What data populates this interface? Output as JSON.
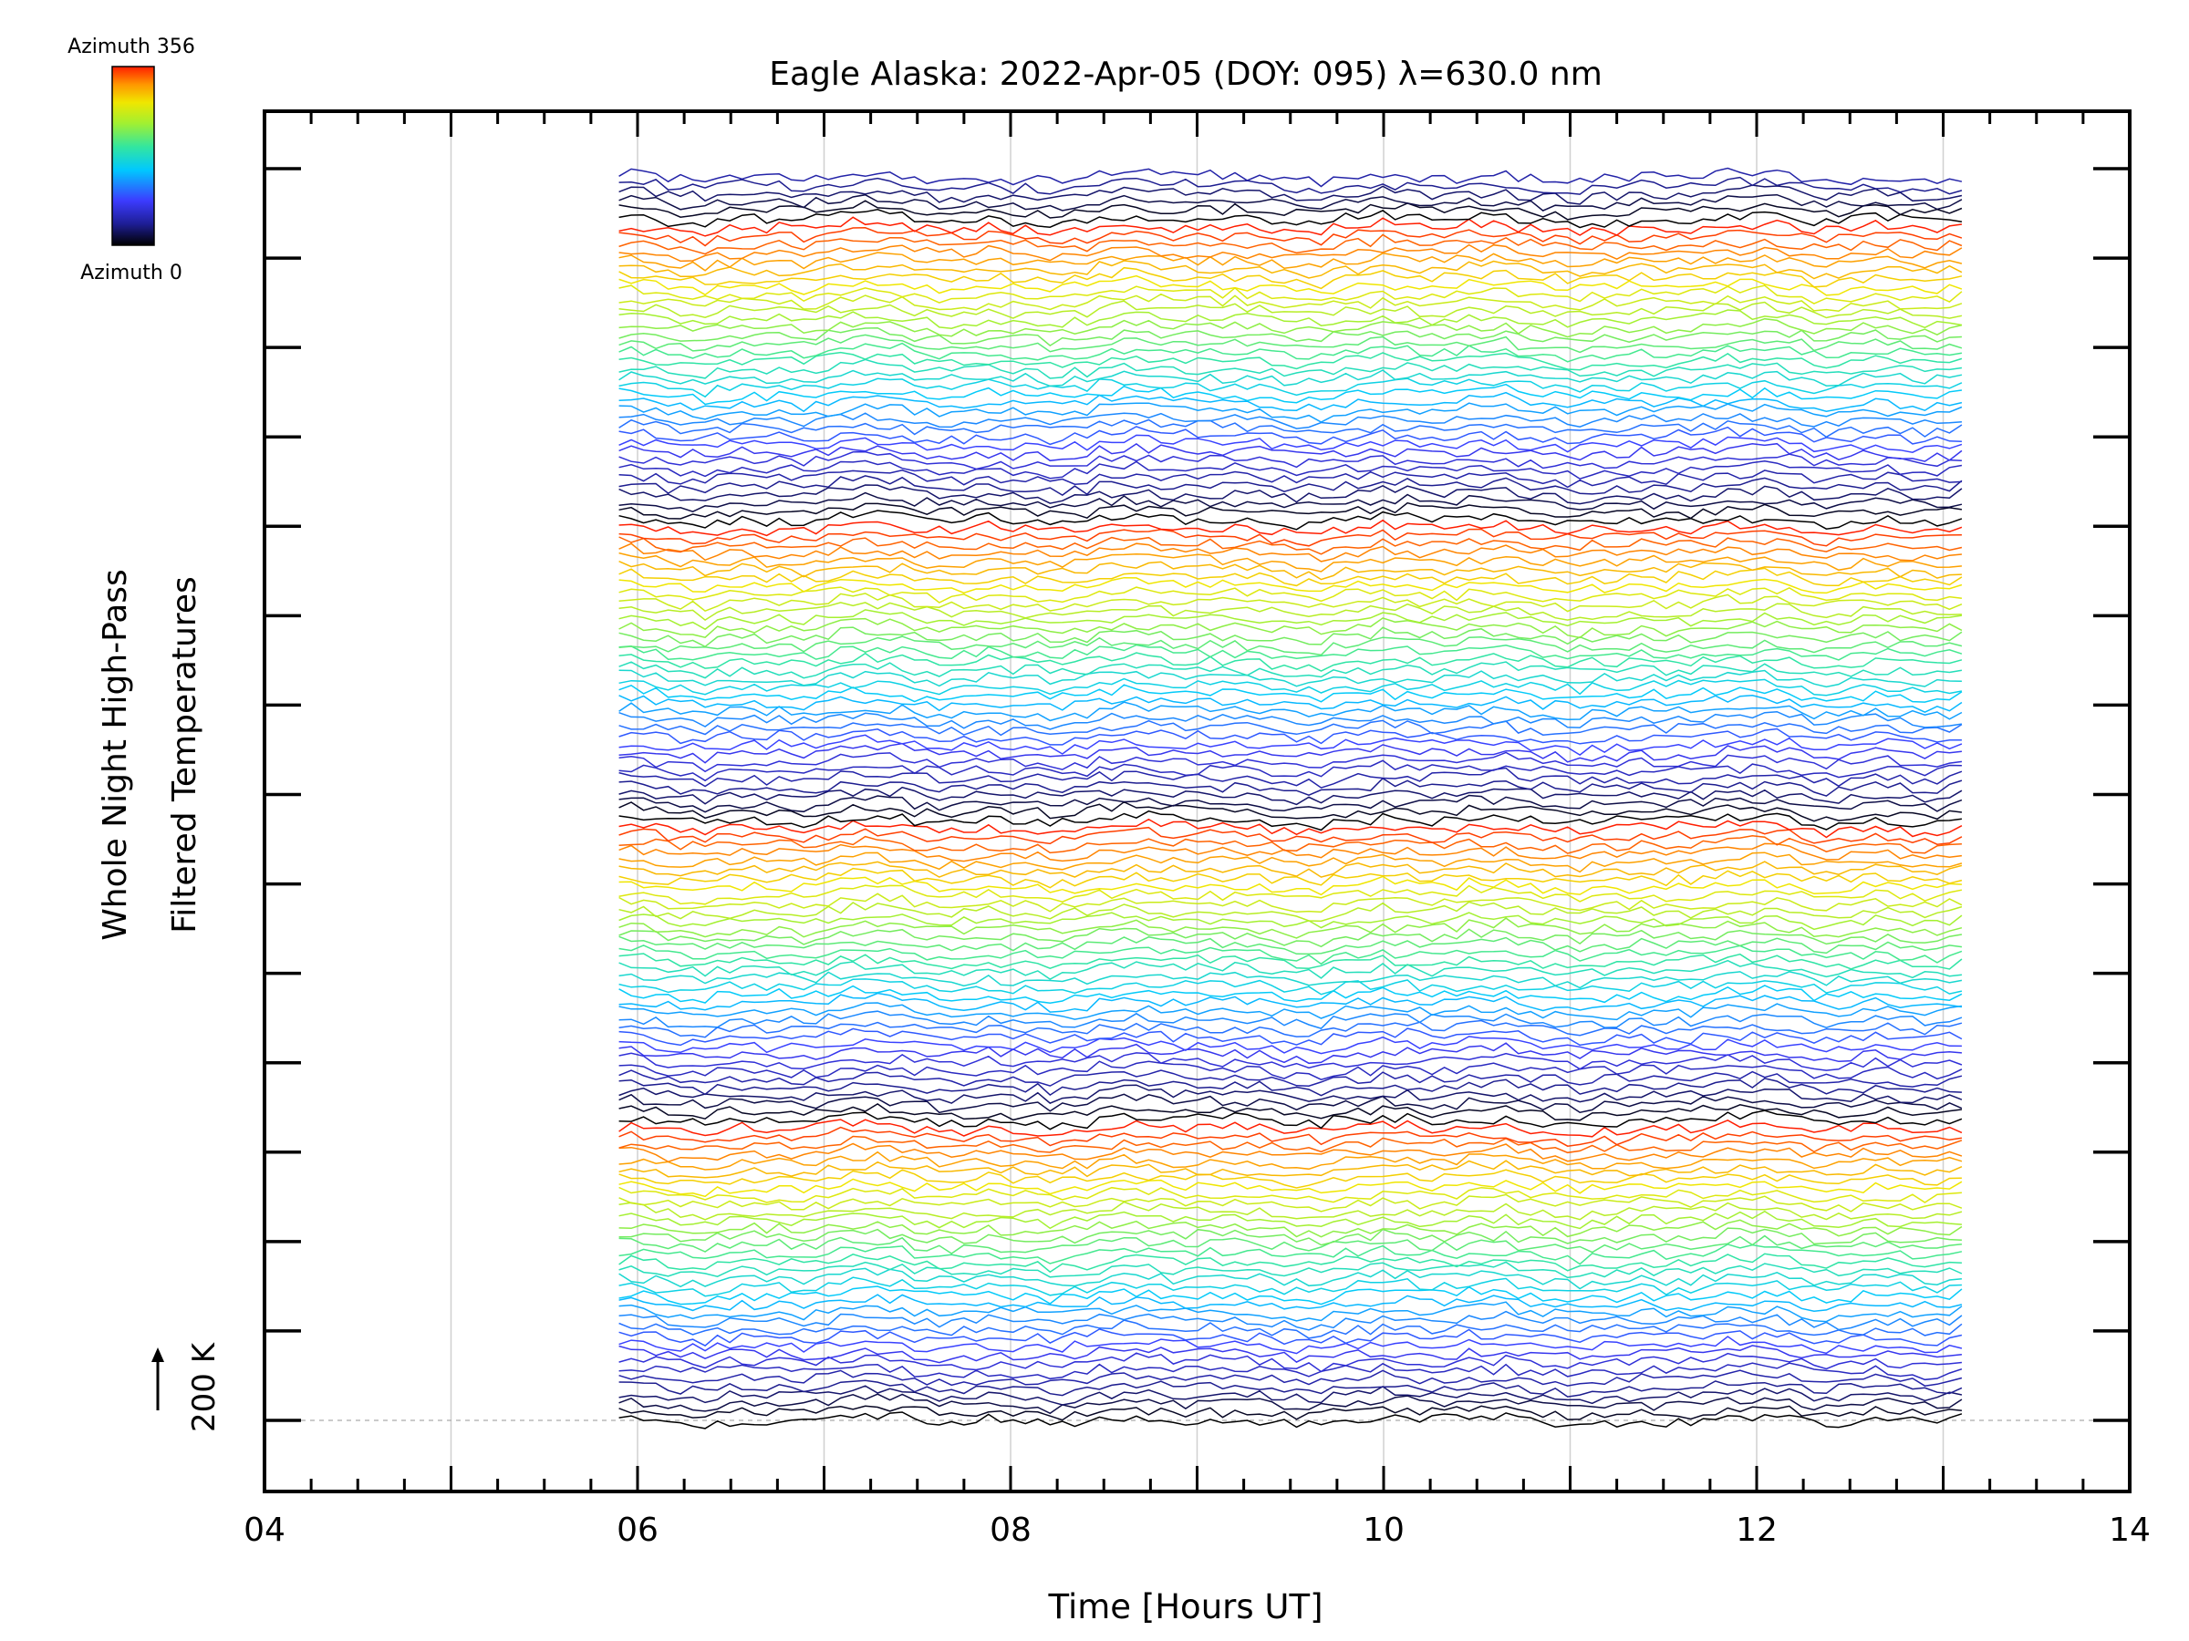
{
  "chart_data": {
    "type": "line",
    "title": "Eagle Alaska: 2022-Apr-05 (DOY: 095) λ=630.0 nm",
    "xlabel": "Time [Hours UT]",
    "ylabel_line1": "Whole Night High-Pass",
    "ylabel_line2": "Filtered Temperatures",
    "scale_label": "200 K",
    "xlim": [
      4,
      14
    ],
    "x_ticks": [
      "04",
      "06",
      "08",
      "10",
      "12",
      "14"
    ],
    "x_gridlines": [
      5,
      6,
      7,
      8,
      9,
      10,
      11,
      12,
      13
    ],
    "time_range": [
      5.9,
      13.1
    ],
    "y_major_ticks": 15,
    "colorbar": {
      "top_label": "Azimuth 356",
      "bottom_label": "Azimuth 0",
      "colormap": "rainbow"
    },
    "series_description": "stacked high-pass filtered temperature traces, one per azimuth, offset vertically",
    "num_traces": 150,
    "colors": {
      "axis": "#000000",
      "grid": "#d0d0d0",
      "baseline": "#aaaaaa",
      "colormap_stops": [
        "#000000",
        "#1e1e96",
        "#3c3cff",
        "#00c8ff",
        "#32e6a0",
        "#a0f032",
        "#f0e600",
        "#ff9600",
        "#ff1e00"
      ]
    }
  }
}
